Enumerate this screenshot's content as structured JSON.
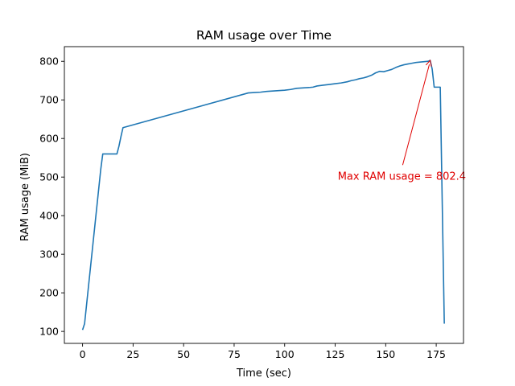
{
  "chart_data": {
    "type": "line",
    "title": "RAM usage over Time",
    "xlabel": "Time (sec)",
    "ylabel": "RAM usage (MiB)",
    "xlim": [
      -9,
      188.5
    ],
    "ylim": [
      69,
      838
    ],
    "xticks": [
      0,
      25,
      50,
      75,
      100,
      125,
      150,
      175
    ],
    "yticks": [
      100,
      200,
      300,
      400,
      500,
      600,
      700,
      800
    ],
    "grid": false,
    "line_color": "#1f77b4",
    "annotation_color": "#e00000",
    "series": [
      {
        "x": [
          0,
          1,
          9,
          10,
          17,
          18,
          19,
          20,
          82,
          85,
          88,
          91,
          94,
          97,
          100,
          103,
          106,
          109,
          112,
          114,
          116,
          119,
          122,
          125,
          128,
          131,
          133,
          135,
          137,
          139,
          141,
          143,
          145,
          147,
          149,
          151,
          153,
          155,
          157,
          159,
          161,
          163,
          165,
          167,
          169,
          171,
          172,
          173,
          174,
          176,
          177,
          179
        ],
        "y": [
          104,
          120,
          520,
          560,
          560,
          580,
          605,
          628,
          718,
          719,
          720,
          722,
          723,
          724,
          725,
          727,
          730,
          731,
          732,
          733,
          736,
          738,
          740,
          742,
          744,
          747,
          750,
          752,
          755,
          757,
          760,
          764,
          770,
          774,
          773,
          776,
          779,
          784,
          788,
          791,
          793,
          795,
          797,
          798,
          799,
          800,
          802.4,
          780,
          733,
          733,
          733,
          120
        ]
      }
    ],
    "annotations": [
      {
        "text": "Max RAM usage = 802.4",
        "point": [
          172,
          802.4
        ],
        "text_pos": [
          158,
          504
        ]
      }
    ]
  }
}
